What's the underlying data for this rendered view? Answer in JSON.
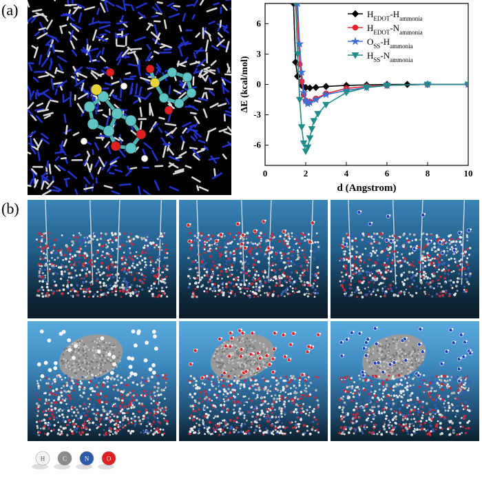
{
  "figure": {
    "panel_a_label": "(a)",
    "panel_b_label": "(b)"
  },
  "chart_data": {
    "type": "line",
    "title": "",
    "xlabel": "d (Angstrom)",
    "ylabel": "ΔE (kcal/mol)",
    "xlim": [
      0,
      10
    ],
    "ylim": [
      -8,
      8
    ],
    "xticks": [
      0,
      2,
      4,
      6,
      8,
      10
    ],
    "yticks": [
      -6,
      -3,
      0,
      3,
      6
    ],
    "grid": false,
    "legend_position": "top-right",
    "series": [
      {
        "name": "H_EDOT-H_ammonia",
        "label_main1": "H",
        "label_sub1": "EDOT",
        "label_main2": "-H",
        "label_sub2": "ammonia",
        "color": "#000000",
        "marker": "diamond",
        "x": [
          1.4,
          1.5,
          1.6,
          1.8,
          2.0,
          2.2,
          2.5,
          3.0,
          4.0,
          5.0,
          6.0,
          7.0,
          8.0,
          10.0
        ],
        "y": [
          8.0,
          2.2,
          0.8,
          -0.1,
          -0.3,
          -0.35,
          -0.3,
          -0.2,
          -0.1,
          -0.05,
          0.0,
          0.0,
          0.0,
          0.0
        ]
      },
      {
        "name": "H_EDOT-N_ammonia",
        "label_main1": "H",
        "label_sub1": "EDOT",
        "label_main2": "-N",
        "label_sub2": "ammonia",
        "color": "#e8202a",
        "marker": "circle",
        "x": [
          1.55,
          1.7,
          1.8,
          1.9,
          2.0,
          2.1,
          2.2,
          2.5,
          3.0,
          4.0,
          5.0,
          6.0,
          8.0,
          10.0
        ],
        "y": [
          8.0,
          2.0,
          0.3,
          -1.0,
          -1.6,
          -1.8,
          -1.7,
          -1.4,
          -0.9,
          -0.4,
          -0.2,
          -0.1,
          0.0,
          0.0
        ]
      },
      {
        "name": "O_SS-H_ammonia",
        "label_main1": "O",
        "label_sub1": "SS",
        "label_main2": "-H",
        "label_sub2": "ammonia",
        "color": "#3f6fd2",
        "marker": "star",
        "x": [
          1.6,
          1.7,
          1.8,
          1.9,
          2.0,
          2.1,
          2.2,
          2.5,
          3.0,
          4.0,
          5.0,
          6.0,
          8.0,
          10.0
        ],
        "y": [
          8.0,
          4.0,
          1.2,
          -0.8,
          -1.6,
          -1.9,
          -1.8,
          -1.5,
          -1.0,
          -0.6,
          -0.3,
          -0.1,
          0.0,
          0.0
        ]
      },
      {
        "name": "H_SS-N_ammonia",
        "label_main1": "H",
        "label_sub1": "SS",
        "label_main2": "-N",
        "label_sub2": "ammonia",
        "color": "#1e8c88",
        "marker": "triangle-down",
        "x": [
          1.5,
          1.6,
          1.7,
          1.8,
          1.9,
          2.0,
          2.1,
          2.2,
          2.3,
          2.4,
          2.6,
          3.0,
          4.0,
          5.0,
          6.0,
          8.0,
          10.0
        ],
        "y": [
          8.0,
          3.0,
          -1.5,
          -4.2,
          -5.8,
          -6.6,
          -6.2,
          -5.3,
          -4.4,
          -3.6,
          -2.9,
          -2.0,
          -0.8,
          -0.3,
          -0.1,
          0.0,
          0.0
        ]
      }
    ]
  },
  "atom_legend": [
    {
      "symbol": "H",
      "color": "#f2f2f2",
      "text_color": "#555555"
    },
    {
      "symbol": "C",
      "color": "#8a8a8a",
      "text_color": "#ffffff"
    },
    {
      "symbol": "N",
      "color": "#2a5aa8",
      "text_color": "#ffffff"
    },
    {
      "symbol": "O",
      "color": "#e02020",
      "text_color": "#ffffff"
    }
  ]
}
